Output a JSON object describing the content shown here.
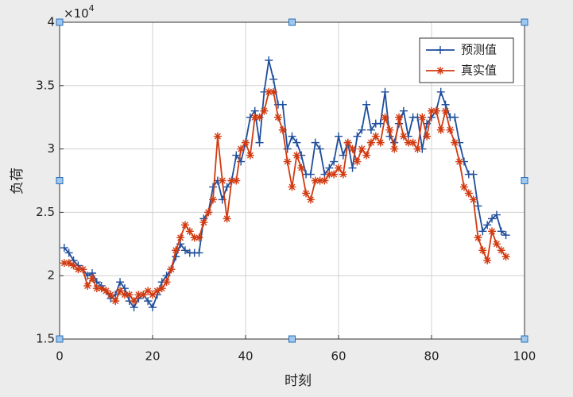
{
  "chart_data": {
    "type": "line",
    "x_label": "时刻",
    "y_label": "负荷",
    "y_multiplier": {
      "base": "×10",
      "exponent": "4"
    },
    "x": [
      1,
      2,
      3,
      4,
      5,
      6,
      7,
      8,
      9,
      10,
      11,
      12,
      13,
      14,
      15,
      16,
      17,
      18,
      19,
      20,
      21,
      22,
      23,
      24,
      25,
      26,
      27,
      28,
      29,
      30,
      31,
      32,
      33,
      34,
      35,
      36,
      37,
      38,
      39,
      40,
      41,
      42,
      43,
      44,
      45,
      46,
      47,
      48,
      49,
      50,
      51,
      52,
      53,
      54,
      55,
      56,
      57,
      58,
      59,
      60,
      61,
      62,
      63,
      64,
      65,
      66,
      67,
      68,
      69,
      70,
      71,
      72,
      73,
      74,
      75,
      76,
      77,
      78,
      79,
      80,
      81,
      82,
      83,
      84,
      85,
      86,
      87,
      88,
      89,
      90,
      91,
      92,
      93,
      94,
      95,
      96
    ],
    "series": [
      {
        "name": "预测值",
        "color": "#1f4e9c",
        "marker": "+",
        "values": [
          2.22,
          2.18,
          2.12,
          2.08,
          2.05,
          2.0,
          2.02,
          1.95,
          1.92,
          1.88,
          1.82,
          1.85,
          1.95,
          1.9,
          1.8,
          1.75,
          1.82,
          1.85,
          1.8,
          1.75,
          1.85,
          1.95,
          2.0,
          2.05,
          2.15,
          2.25,
          2.2,
          2.18,
          2.18,
          2.18,
          2.45,
          2.5,
          2.7,
          2.75,
          2.6,
          2.7,
          2.75,
          2.95,
          2.9,
          3.05,
          3.25,
          3.3,
          3.05,
          3.45,
          3.7,
          3.55,
          3.35,
          3.35,
          3.0,
          3.1,
          3.05,
          2.95,
          2.8,
          2.8,
          3.05,
          3.0,
          2.8,
          2.85,
          2.9,
          3.1,
          2.95,
          3.05,
          2.85,
          3.1,
          3.15,
          3.35,
          3.15,
          3.2,
          3.2,
          3.45,
          3.1,
          3.05,
          3.2,
          3.3,
          3.1,
          3.25,
          3.25,
          3.0,
          3.2,
          3.25,
          3.3,
          3.45,
          3.35,
          3.25,
          3.25,
          3.05,
          2.9,
          2.8,
          2.8,
          2.55,
          2.35,
          2.4,
          2.45,
          2.48,
          2.35,
          2.32
        ]
      },
      {
        "name": "真实值",
        "color": "#d23a10",
        "marker": "*",
        "values": [
          2.1,
          2.1,
          2.08,
          2.05,
          2.05,
          1.92,
          1.98,
          1.9,
          1.9,
          1.88,
          1.85,
          1.8,
          1.88,
          1.85,
          1.85,
          1.8,
          1.85,
          1.85,
          1.88,
          1.85,
          1.88,
          1.9,
          1.95,
          2.05,
          2.2,
          2.3,
          2.4,
          2.35,
          2.3,
          2.3,
          2.42,
          2.5,
          2.6,
          3.1,
          2.75,
          2.45,
          2.75,
          2.75,
          3.0,
          3.05,
          2.95,
          3.25,
          3.25,
          3.3,
          3.45,
          3.45,
          3.25,
          3.15,
          2.9,
          2.7,
          2.95,
          2.85,
          2.65,
          2.6,
          2.75,
          2.75,
          2.75,
          2.8,
          2.8,
          2.85,
          2.8,
          3.05,
          3.0,
          2.9,
          3.0,
          2.95,
          3.05,
          3.1,
          3.05,
          3.25,
          3.15,
          3.0,
          3.25,
          3.1,
          3.05,
          3.05,
          3.0,
          3.25,
          3.1,
          3.3,
          3.3,
          3.15,
          3.3,
          3.15,
          3.05,
          2.9,
          2.7,
          2.65,
          2.6,
          2.3,
          2.2,
          2.12,
          2.35,
          2.25,
          2.2,
          2.15
        ]
      }
    ],
    "xlim": [
      0,
      100
    ],
    "xticks": [
      0,
      20,
      40,
      60,
      80,
      100
    ],
    "ylim": [
      1.5,
      4
    ],
    "yticks": [
      1.5,
      2,
      2.5,
      3,
      3.5,
      4
    ],
    "grid": true,
    "legend": "upper right"
  }
}
